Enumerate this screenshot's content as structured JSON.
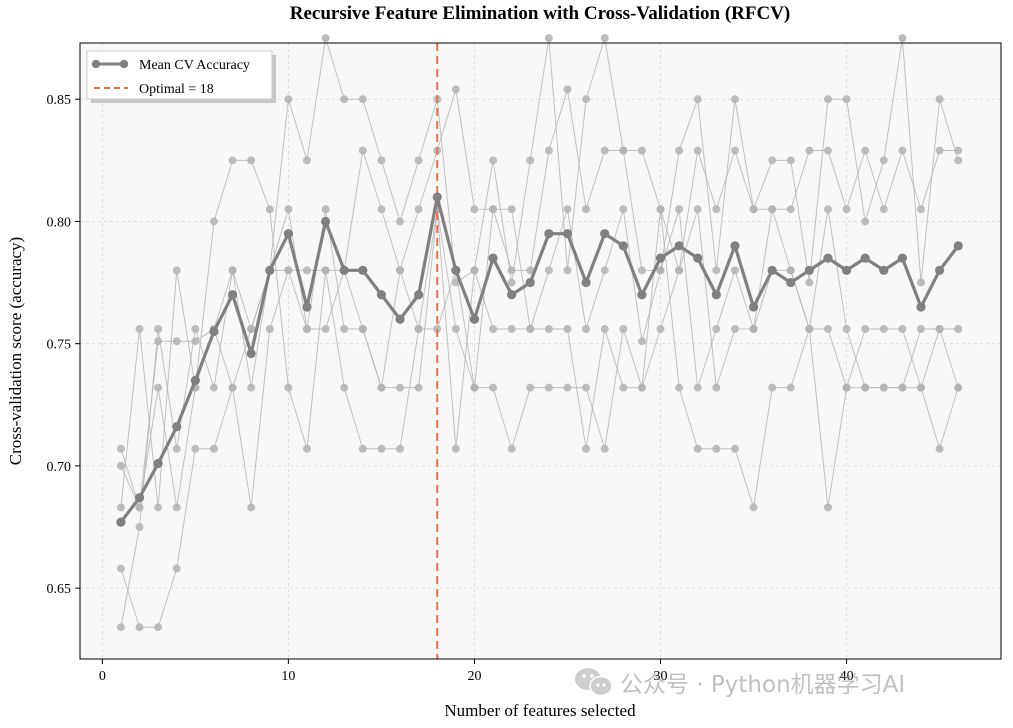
{
  "chart_data": {
    "type": "line",
    "title": "Recursive Feature Elimination with Cross-Validation (RFCV)",
    "xlabel": "Number of features selected",
    "ylabel": "Cross-validation score (accuracy)",
    "xlim": [
      -1.2,
      48.3
    ],
    "ylim": [
      0.621,
      0.873
    ],
    "x_ticks": [
      0,
      10,
      20,
      30,
      40
    ],
    "y_ticks": [
      0.65,
      0.7,
      0.75,
      0.8,
      0.85
    ],
    "y_tick_labels": [
      "0.65",
      "0.70",
      "0.75",
      "0.80",
      "0.85"
    ],
    "grid": true,
    "legend_position": "top-left",
    "colors": {
      "mean": "#808080",
      "fold": "#b3b3b3",
      "optimal": "#e8704e",
      "plot_bg": "#f8f8f8"
    },
    "x": [
      1,
      2,
      3,
      4,
      5,
      6,
      7,
      8,
      9,
      10,
      11,
      12,
      13,
      14,
      15,
      16,
      17,
      18,
      19,
      20,
      21,
      22,
      23,
      24,
      25,
      26,
      27,
      28,
      29,
      30,
      31,
      32,
      33,
      34,
      35,
      36,
      37,
      38,
      39,
      40,
      41,
      42,
      43,
      44,
      45,
      46
    ],
    "series": [
      {
        "name": "Mean CV Accuracy",
        "values": [
          0.677,
          0.687,
          0.701,
          0.716,
          0.735,
          0.755,
          0.77,
          0.746,
          0.78,
          0.795,
          0.765,
          0.8,
          0.78,
          0.78,
          0.77,
          0.76,
          0.77,
          0.81,
          0.78,
          0.76,
          0.785,
          0.77,
          0.775,
          0.795,
          0.795,
          0.775,
          0.795,
          0.79,
          0.77,
          0.785,
          0.79,
          0.785,
          0.77,
          0.79,
          0.765,
          0.78,
          0.775,
          0.78,
          0.785,
          0.78,
          0.785,
          0.78,
          0.785,
          0.765,
          0.78,
          0.79
        ]
      }
    ],
    "folds": [
      [
        0.707,
        0.683,
        0.751,
        0.751,
        0.751,
        0.756,
        0.78,
        0.732,
        0.78,
        0.805,
        0.756,
        0.805,
        0.756,
        0.756,
        0.732,
        0.78,
        0.756,
        0.805,
        0.756,
        0.732,
        0.805,
        0.805,
        0.756,
        0.78,
        0.805,
        0.756,
        0.78,
        0.805,
        0.751,
        0.78,
        0.805,
        0.732,
        0.756,
        0.78,
        0.756,
        0.805,
        0.78,
        0.756,
        0.805,
        0.756,
        0.732,
        0.732,
        0.732,
        0.756,
        0.756,
        0.732
      ],
      [
        0.683,
        0.756,
        0.683,
        0.78,
        0.732,
        0.8,
        0.825,
        0.825,
        0.805,
        0.732,
        0.707,
        0.78,
        0.732,
        0.707,
        0.707,
        0.707,
        0.756,
        0.756,
        0.78,
        0.732,
        0.732,
        0.707,
        0.732,
        0.732,
        0.732,
        0.732,
        0.707,
        0.756,
        0.732,
        0.805,
        0.732,
        0.707,
        0.707,
        0.707,
        0.683,
        0.732,
        0.732,
        0.756,
        0.683,
        0.732,
        0.732,
        0.732,
        0.732,
        0.732,
        0.707,
        0.732
      ],
      [
        0.658,
        0.634,
        0.634,
        0.658,
        0.707,
        0.707,
        0.732,
        0.683,
        0.756,
        0.78,
        0.756,
        0.756,
        0.78,
        0.756,
        0.732,
        0.732,
        0.732,
        0.805,
        0.707,
        0.78,
        0.756,
        0.756,
        0.756,
        0.756,
        0.756,
        0.707,
        0.756,
        0.732,
        0.732,
        0.756,
        0.78,
        0.805,
        0.732,
        0.756,
        0.756,
        0.78,
        0.78,
        0.756,
        0.756,
        0.732,
        0.756,
        0.756,
        0.756,
        0.732,
        0.756,
        0.756
      ],
      [
        0.634,
        0.675,
        0.756,
        0.707,
        0.756,
        0.732,
        0.78,
        0.756,
        0.78,
        0.85,
        0.825,
        0.875,
        0.85,
        0.85,
        0.825,
        0.8,
        0.825,
        0.85,
        0.775,
        0.78,
        0.825,
        0.775,
        0.825,
        0.875,
        0.78,
        0.85,
        0.875,
        0.829,
        0.78,
        0.78,
        0.829,
        0.85,
        0.78,
        0.85,
        0.805,
        0.825,
        0.825,
        0.775,
        0.85,
        0.85,
        0.8,
        0.825,
        0.875,
        0.775,
        0.85,
        0.825
      ],
      [
        0.7,
        0.683,
        0.732,
        0.683,
        0.732,
        0.756,
        0.732,
        0.756,
        0.78,
        0.78,
        0.78,
        0.78,
        0.78,
        0.829,
        0.805,
        0.78,
        0.805,
        0.829,
        0.854,
        0.805,
        0.805,
        0.78,
        0.78,
        0.829,
        0.854,
        0.805,
        0.829,
        0.829,
        0.829,
        0.805,
        0.78,
        0.829,
        0.805,
        0.829,
        0.805,
        0.805,
        0.805,
        0.829,
        0.829,
        0.805,
        0.829,
        0.805,
        0.829,
        0.805,
        0.829,
        0.829
      ]
    ],
    "optimal_x": 18,
    "legend": {
      "mean_label": "Mean CV Accuracy",
      "optimal_label": "Optimal = 18"
    }
  },
  "watermark": {
    "text": "公众号 · Python机器学习AI",
    "icon": "wechat-icon"
  }
}
